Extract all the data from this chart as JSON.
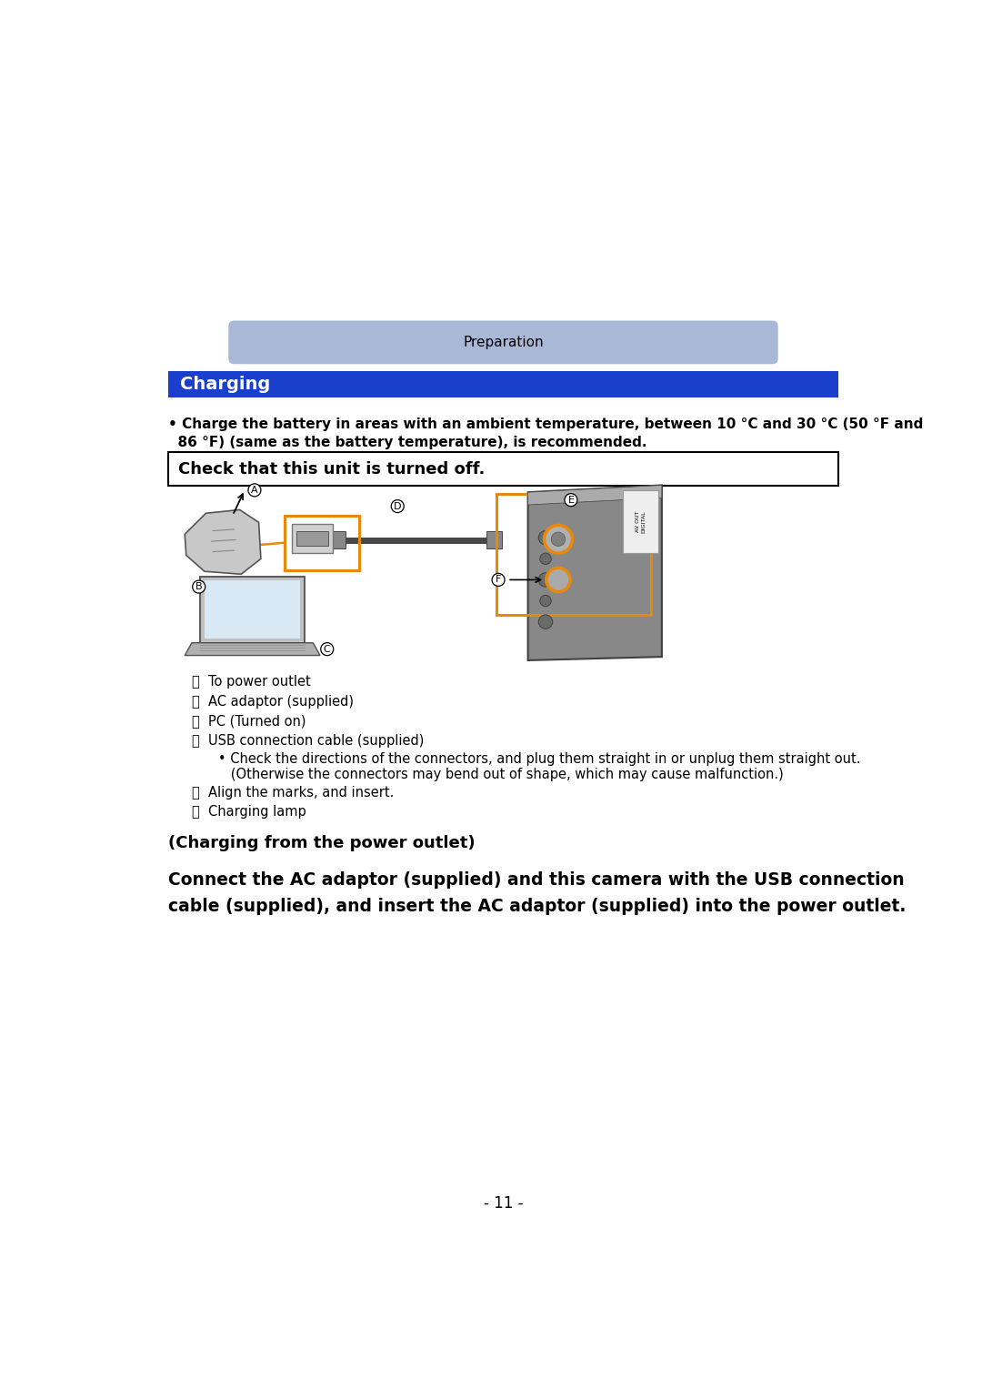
{
  "page_bg": "#ffffff",
  "header_bar_color": "#aab8d8",
  "header_text": "Preparation",
  "header_text_color": "#000000",
  "section_bar_color": "#1a3fcc",
  "section_text": "Charging",
  "section_text_color": "#ffffff",
  "bullet_line1": "• Charge the battery in areas with an ambient temperature, between 10 °C and 30 °C (50 °F and",
  "bullet_line2": "  86 °F) (same as the battery temperature), is recommended.",
  "check_box_text": "Check that this unit is turned off.",
  "legend_a": "Ⓐ  To power outlet",
  "legend_b": "Ⓑ  AC adaptor (supplied)",
  "legend_c": "Ⓒ  PC (Turned on)",
  "legend_d": "Ⓓ  USB connection cable (supplied)",
  "legend_bullet1": "   • Check the directions of the connectors, and plug them straight in or unplug them straight out.",
  "legend_bullet2": "      (Otherwise the connectors may bend out of shape, which may cause malfunction.)",
  "legend_e": "Ⓔ  Align the marks, and insert.",
  "legend_f": "Ⓕ  Charging lamp",
  "subheading": "(Charging from the power outlet)",
  "main_text_line1": "Connect the AC adaptor (supplied) and this camera with the USB connection",
  "main_text_line2": "cable (supplied), and insert the AC adaptor (supplied) into the power outlet.",
  "page_number": "- 11 -",
  "orange_color": "#e8890a",
  "label_a": "A",
  "label_b": "B",
  "label_c": "C",
  "label_d": "D",
  "label_e": "E",
  "label_f": "F"
}
